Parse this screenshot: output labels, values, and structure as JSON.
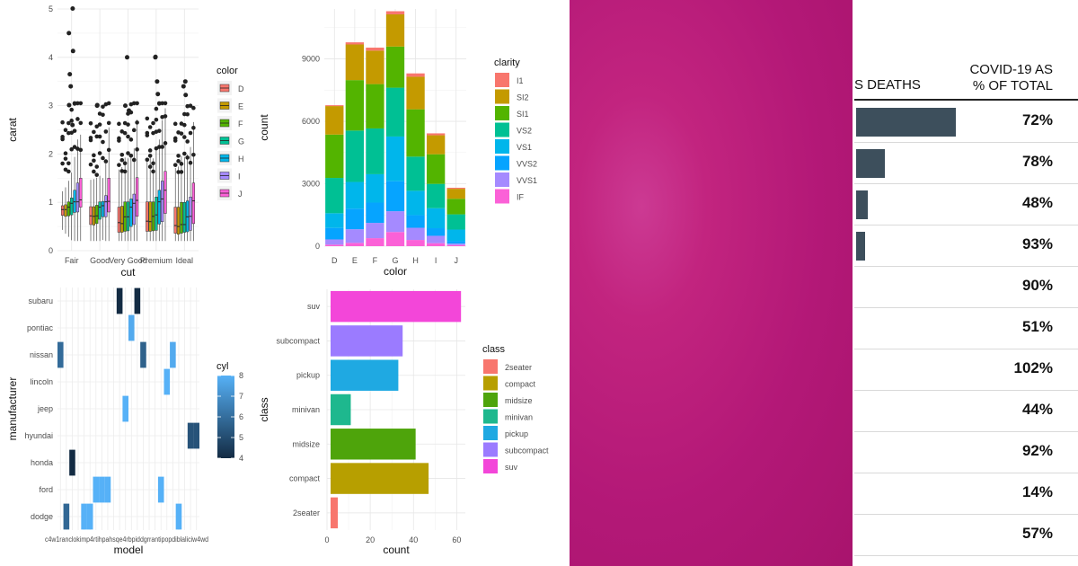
{
  "chart_data": [
    {
      "type": "boxplot",
      "xlabel": "cut",
      "ylabel": "carat",
      "categories": [
        "Fair",
        "Good",
        "Very Good",
        "Premium",
        "Ideal"
      ],
      "ylim": [
        0,
        5
      ],
      "yticks": [
        0,
        1,
        2,
        3,
        4,
        5
      ],
      "legend": {
        "title": "color",
        "position": "right",
        "entries": [
          "D",
          "E",
          "F",
          "G",
          "H",
          "I",
          "J"
        ]
      },
      "colors": [
        "#F8766D",
        "#C49A00",
        "#53B400",
        "#00C094",
        "#00B6EB",
        "#A58AFF",
        "#FB61D7"
      ],
      "series": [
        {
          "name": "D",
          "boxes": [
            [
              0.73,
              0.85,
              0.93
            ],
            [
              0.54,
              0.72,
              0.91
            ],
            [
              0.38,
              0.58,
              0.9
            ],
            [
              0.4,
              0.61,
              1.01
            ],
            [
              0.36,
              0.52,
              0.9
            ]
          ]
        },
        {
          "name": "E",
          "boxes": [
            [
              0.71,
              0.85,
              0.95
            ],
            [
              0.53,
              0.71,
              0.91
            ],
            [
              0.38,
              0.56,
              0.92
            ],
            [
              0.4,
              0.6,
              1.01
            ],
            [
              0.34,
              0.5,
              0.9
            ]
          ]
        },
        {
          "name": "F",
          "boxes": [
            [
              0.72,
              0.9,
              1.01
            ],
            [
              0.56,
              0.72,
              0.94
            ],
            [
              0.4,
              0.7,
              1.01
            ],
            [
              0.41,
              0.71,
              1.01
            ],
            [
              0.36,
              0.54,
              1.0
            ]
          ]
        },
        {
          "name": "G",
          "boxes": [
            [
              0.74,
              0.98,
              1.09
            ],
            [
              0.65,
              0.9,
              1.01
            ],
            [
              0.41,
              0.7,
              1.01
            ],
            [
              0.42,
              0.74,
              1.11
            ],
            [
              0.38,
              0.54,
              1.0
            ]
          ]
        },
        {
          "name": "H",
          "boxes": [
            [
              0.79,
              1.01,
              1.25
            ],
            [
              0.7,
              0.93,
              1.02
            ],
            [
              0.5,
              0.9,
              1.07
            ],
            [
              0.55,
              1.01,
              1.25
            ],
            [
              0.39,
              0.7,
              1.03
            ]
          ]
        },
        {
          "name": "I",
          "boxes": [
            [
              0.8,
              1.01,
              1.4
            ],
            [
              0.7,
              1.01,
              1.14
            ],
            [
              0.54,
              0.98,
              1.17
            ],
            [
              0.6,
              1.07,
              1.44
            ],
            [
              0.42,
              0.71,
              1.11
            ]
          ]
        },
        {
          "name": "J",
          "boxes": [
            [
              0.9,
              1.05,
              1.5
            ],
            [
              0.8,
              1.02,
              1.5
            ],
            [
              0.71,
              1.04,
              1.51
            ],
            [
              0.77,
              1.25,
              1.64
            ],
            [
              0.56,
              1.03,
              1.4
            ]
          ]
        }
      ],
      "outliers": [
        [
          0,
          3.4
        ],
        [
          0,
          5.01
        ],
        [
          0,
          4.5
        ],
        [
          0,
          4.13
        ],
        [
          0,
          3.65
        ],
        [
          0,
          3.01
        ],
        [
          0,
          2.6
        ],
        [
          1,
          3.0
        ],
        [
          1,
          3.01
        ],
        [
          2,
          4.0
        ],
        [
          2,
          3.0
        ],
        [
          2,
          2.9
        ],
        [
          3,
          4.01
        ],
        [
          3,
          4.0
        ],
        [
          3,
          3.5
        ],
        [
          3,
          3.24
        ],
        [
          4,
          3.5
        ],
        [
          4,
          3.4
        ],
        [
          4,
          3.22
        ]
      ],
      "grid": true
    },
    {
      "type": "stacked-bar",
      "xlabel": "color",
      "ylabel": "count",
      "categories": [
        "D",
        "E",
        "F",
        "G",
        "H",
        "I",
        "J"
      ],
      "ylim": [
        0,
        11400
      ],
      "yticks": [
        0,
        3000,
        6000,
        9000
      ],
      "legend": {
        "title": "clarity",
        "position": "right"
      },
      "series": [
        {
          "name": "I1",
          "color": "#F8766D",
          "values": [
            42,
            102,
            143,
            150,
            162,
            92,
            50
          ]
        },
        {
          "name": "SI2",
          "color": "#C49A00",
          "values": [
            1370,
            1713,
            1609,
            1548,
            1563,
            912,
            479
          ]
        },
        {
          "name": "SI1",
          "color": "#53B400",
          "values": [
            2083,
            2426,
            2131,
            1976,
            2275,
            1424,
            750
          ]
        },
        {
          "name": "VS2",
          "color": "#00C094",
          "values": [
            1697,
            2470,
            2201,
            2347,
            1643,
            1169,
            731
          ]
        },
        {
          "name": "VS1",
          "color": "#00B6EB",
          "values": [
            705,
            1281,
            1364,
            2148,
            1169,
            962,
            542
          ]
        },
        {
          "name": "VVS2",
          "color": "#06A4FF",
          "values": [
            553,
            991,
            975,
            1443,
            608,
            365,
            131
          ]
        },
        {
          "name": "VVS1",
          "color": "#A58AFF",
          "values": [
            252,
            656,
            734,
            999,
            585,
            355,
            74
          ]
        },
        {
          "name": "IF",
          "color": "#FB61D7",
          "values": [
            73,
            158,
            385,
            681,
            299,
            143,
            51
          ]
        }
      ],
      "grid": true
    },
    {
      "type": "heatmap",
      "xlabel": "model",
      "ylabel": "manufacturer",
      "x_tick_text": "c4w1ranclokimp4rtihpahsqe4rbpiddgrrantipopdiblaliciw4wd",
      "manufacturers": [
        "subaru",
        "pontiac",
        "nissan",
        "lincoln",
        "jeep",
        "hyundai",
        "honda",
        "ford",
        "dodge"
      ],
      "legend": {
        "title": "cyl",
        "position": "right",
        "ticks": [
          4,
          5,
          6,
          7,
          8
        ]
      },
      "color_range": [
        "#132B43",
        "#56B1F7"
      ],
      "tiles": [
        {
          "manufacturer": "subaru",
          "model_index": 10,
          "cyl": 4
        },
        {
          "manufacturer": "subaru",
          "model_index": 13,
          "cyl": 4
        },
        {
          "manufacturer": "pontiac",
          "model_index": 12,
          "cyl": 7.8
        },
        {
          "manufacturer": "nissan",
          "model_index": 0,
          "cyl": 5.9
        },
        {
          "manufacturer": "nissan",
          "model_index": 14,
          "cyl": 5.6
        },
        {
          "manufacturer": "nissan",
          "model_index": 19,
          "cyl": 7.8
        },
        {
          "manufacturer": "lincoln",
          "model_index": 18,
          "cyl": 8
        },
        {
          "manufacturer": "jeep",
          "model_index": 11,
          "cyl": 8
        },
        {
          "manufacturer": "hyundai",
          "model_index": 22,
          "cyl": 5.2
        },
        {
          "manufacturer": "hyundai",
          "model_index": 23,
          "cyl": 5.2
        },
        {
          "manufacturer": "honda",
          "model_index": 2,
          "cyl": 4
        },
        {
          "manufacturer": "ford",
          "model_index": 6,
          "cyl": 8
        },
        {
          "manufacturer": "ford",
          "model_index": 7,
          "cyl": 8
        },
        {
          "manufacturer": "ford",
          "model_index": 8,
          "cyl": 8
        },
        {
          "manufacturer": "ford",
          "model_index": 17,
          "cyl": 8
        },
        {
          "manufacturer": "dodge",
          "model_index": 1,
          "cyl": 5.8
        },
        {
          "manufacturer": "dodge",
          "model_index": 4,
          "cyl": 8
        },
        {
          "manufacturer": "dodge",
          "model_index": 5,
          "cyl": 8
        },
        {
          "manufacturer": "dodge",
          "model_index": 20,
          "cyl": 8
        }
      ],
      "n_models": 24,
      "grid": true
    },
    {
      "type": "bar",
      "orientation": "horizontal",
      "xlabel": "count",
      "ylabel": "class",
      "categories": [
        "2seater",
        "compact",
        "midsize",
        "minivan",
        "pickup",
        "subcompact",
        "suv"
      ],
      "values": [
        5,
        47,
        41,
        11,
        33,
        35,
        62
      ],
      "colors": [
        "#F8766D",
        "#B79F00",
        "#4EA40B",
        "#1EB88E",
        "#1FA9E2",
        "#9B7BFF",
        "#F346D9"
      ],
      "xlim": [
        0,
        64
      ],
      "xticks": [
        0,
        20,
        40,
        60
      ],
      "legend": {
        "title": "class",
        "position": "right"
      },
      "grid": true
    }
  ],
  "table": {
    "header_left": "S DEATHS",
    "header_right_line1": "COVID-19 AS",
    "header_right_line2": "% OF TOTAL",
    "bar_color": "#3d4f5c",
    "rows": [
      {
        "deaths_share": 1.0,
        "pct": "72%"
      },
      {
        "deaths_share": 0.29,
        "pct": "78%"
      },
      {
        "deaths_share": 0.12,
        "pct": "48%"
      },
      {
        "deaths_share": 0.09,
        "pct": "93%"
      },
      {
        "deaths_share": 0,
        "pct": "90%"
      },
      {
        "deaths_share": 0,
        "pct": "51%"
      },
      {
        "deaths_share": 0,
        "pct": "102%"
      },
      {
        "deaths_share": 0,
        "pct": "44%"
      },
      {
        "deaths_share": 0,
        "pct": "92%"
      },
      {
        "deaths_share": 0,
        "pct": "14%"
      },
      {
        "deaths_share": 0,
        "pct": "57%"
      }
    ]
  },
  "background": {
    "magenta": "#b81a7a"
  }
}
